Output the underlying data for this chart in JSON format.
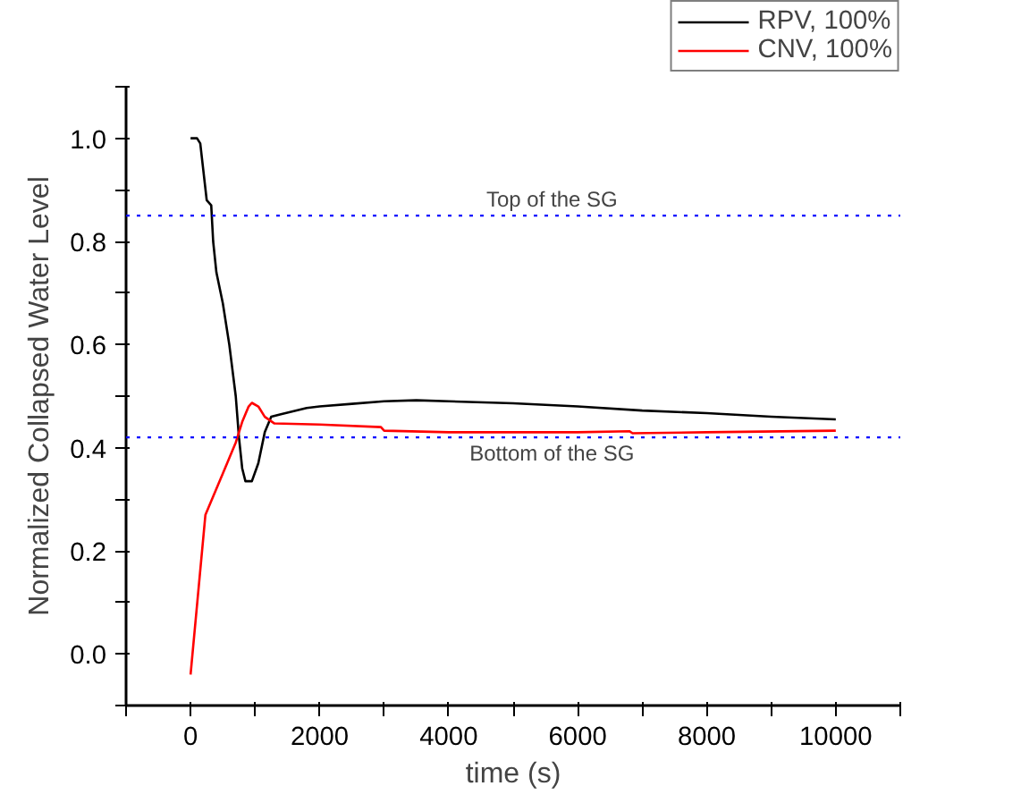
{
  "chart_data": {
    "type": "line",
    "xlabel": "time (s)",
    "ylabel": "Normalized Collapsed Water Level",
    "xlim": [
      -1000,
      11000
    ],
    "ylim": [
      -0.1,
      1.1
    ],
    "xticks": [
      {
        "value": -1000,
        "label": null
      },
      0,
      {
        "value": 1000,
        "label": null
      },
      2000,
      {
        "value": 3000,
        "label": null
      },
      4000,
      {
        "value": 5000,
        "label": null
      },
      6000,
      {
        "value": 7000,
        "label": null
      },
      8000,
      {
        "value": 9000,
        "label": null
      },
      10000,
      {
        "value": 11000,
        "label": null
      }
    ],
    "yticks": [
      {
        "value": -0.1,
        "label": null
      },
      {
        "value": 0,
        "label": "0.0"
      },
      {
        "value": 0.1,
        "label": null
      },
      0.2,
      {
        "value": 0.3,
        "label": null
      },
      0.4,
      {
        "value": 0.5,
        "label": null
      },
      0.6,
      {
        "value": 0.7,
        "label": null
      },
      0.8,
      {
        "value": 0.9,
        "label": null
      },
      {
        "value": 1,
        "label": "1.0"
      },
      {
        "value": 1.1,
        "label": null
      }
    ],
    "grid": false,
    "legend": "top right",
    "line_style": "solid",
    "series": [
      {
        "name": "RPV, 100%",
        "color": "#000000",
        "x": [
          0,
          100,
          150,
          250,
          320,
          350,
          400,
          500,
          600,
          700,
          750,
          800,
          850,
          950,
          1050,
          1150,
          1250,
          1400,
          1800,
          2000,
          2500,
          3000,
          3500,
          4000,
          5000,
          6000,
          7000,
          8000,
          9000,
          10000
        ],
        "values": [
          1.0,
          1.0,
          0.99,
          0.88,
          0.87,
          0.8,
          0.74,
          0.68,
          0.6,
          0.5,
          0.42,
          0.36,
          0.335,
          0.335,
          0.37,
          0.43,
          0.46,
          0.465,
          0.477,
          0.48,
          0.485,
          0.49,
          0.492,
          0.49,
          0.486,
          0.48,
          0.472,
          0.467,
          0.46,
          0.455
        ]
      },
      {
        "name": "CNV, 100%",
        "color": "#ff0000",
        "x": [
          0,
          230,
          500,
          700,
          800,
          900,
          950,
          1050,
          1150,
          1300,
          2000,
          2950,
          3000,
          4000,
          6000,
          6800,
          6850,
          8000,
          10000
        ],
        "values": [
          -0.04,
          0.27,
          0.35,
          0.41,
          0.45,
          0.48,
          0.487,
          0.48,
          0.46,
          0.447,
          0.445,
          0.44,
          0.433,
          0.43,
          0.43,
          0.432,
          0.428,
          0.43,
          0.433
        ]
      }
    ],
    "ref_lines": [
      {
        "axis": "y",
        "value": 0.85,
        "label": "Top of the SG",
        "color": "#0000ff",
        "line_style": "dotted"
      },
      {
        "axis": "y",
        "value": 0.42,
        "label": "Bottom of the SG",
        "color": "#0000ff",
        "line_style": "dotted"
      }
    ]
  }
}
